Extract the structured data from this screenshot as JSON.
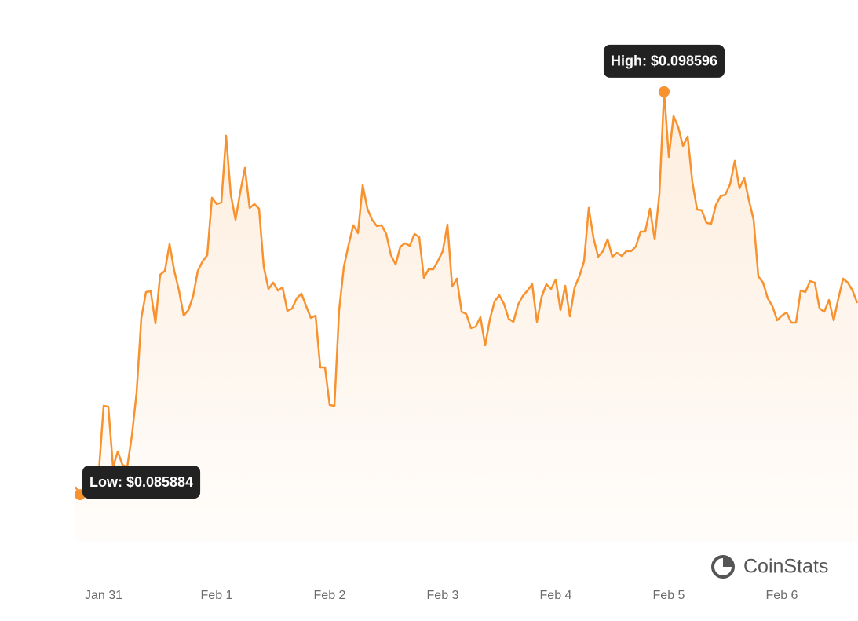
{
  "chart_data": {
    "type": "line",
    "color": "#f7922f",
    "ylim": [
      0.0844,
      0.1005
    ],
    "annotations": {
      "low": "Low: $0.085884",
      "high": "High: $0.098596"
    },
    "watermark": "CoinStats",
    "categories": [
      null,
      null,
      null,
      null,
      null,
      null,
      "Jan 31",
      null,
      null,
      null,
      null,
      null,
      null,
      null,
      null,
      null,
      null,
      null,
      null,
      null,
      null,
      null,
      null,
      null,
      null,
      null,
      null,
      null,
      null,
      null,
      "Feb 1",
      null,
      null,
      null,
      null,
      null,
      null,
      null,
      null,
      null,
      null,
      null,
      null,
      null,
      null,
      null,
      null,
      null,
      null,
      null,
      null,
      null,
      null,
      null,
      "Feb 2",
      null,
      null,
      null,
      null,
      null,
      null,
      null,
      null,
      null,
      null,
      null,
      null,
      null,
      null,
      null,
      null,
      null,
      null,
      null,
      null,
      null,
      null,
      null,
      "Feb 3",
      null,
      null,
      null,
      null,
      null,
      null,
      null,
      null,
      null,
      null,
      null,
      null,
      null,
      null,
      null,
      null,
      null,
      null,
      null,
      null,
      null,
      null,
      null,
      "Feb 4",
      null,
      null,
      null,
      null,
      null,
      null,
      null,
      null,
      null,
      null,
      null,
      null,
      null,
      null,
      null,
      null,
      null,
      null,
      null,
      null,
      null,
      null,
      null,
      "Feb 5",
      null,
      null,
      null,
      null,
      null,
      null,
      null,
      null,
      null,
      null,
      null,
      null,
      null,
      null,
      null,
      null,
      null,
      null,
      null,
      null,
      null,
      null,
      null,
      "Feb 6",
      null,
      null,
      null,
      null,
      null,
      null,
      null,
      null,
      null,
      null,
      null,
      null,
      null,
      null,
      null,
      null
    ],
    "values": [
      0.086132,
      0.085884,
      0.086008,
      0.086008,
      0.086082,
      0.086627,
      0.088684,
      0.088659,
      0.086751,
      0.087247,
      0.086826,
      0.086751,
      0.087743,
      0.089105,
      0.09146,
      0.092277,
      0.092302,
      0.091286,
      0.092822,
      0.092946,
      0.093789,
      0.092946,
      0.092327,
      0.091534,
      0.091707,
      0.092153,
      0.092946,
      0.093244,
      0.093442,
      0.095251,
      0.095053,
      0.095102,
      0.097208,
      0.09535,
      0.094557,
      0.095424,
      0.096192,
      0.094929,
      0.095053,
      0.094904,
      0.09307,
      0.092376,
      0.092575,
      0.092327,
      0.092426,
      0.091683,
      0.091757,
      0.092079,
      0.092228,
      0.091831,
      0.09146,
      0.091534,
      0.089898,
      0.089898,
      0.088709,
      0.088684,
      0.091707,
      0.09307,
      0.093764,
      0.094384,
      0.094136,
      0.095647,
      0.094904,
      0.094557,
      0.094359,
      0.094384,
      0.094111,
      0.093442,
      0.093145,
      0.093714,
      0.093814,
      0.093739,
      0.094111,
      0.094012,
      0.092723,
      0.092996,
      0.092996,
      0.093268,
      0.093566,
      0.094408,
      0.092451,
      0.092699,
      0.091658,
      0.091583,
      0.091137,
      0.091187,
      0.091484,
      0.090592,
      0.09141,
      0.09198,
      0.092178,
      0.091906,
      0.091435,
      0.091336,
      0.091881,
      0.092153,
      0.092327,
      0.092525,
      0.091336,
      0.092129,
      0.092525,
      0.092376,
      0.092674,
      0.091707,
      0.092475,
      0.091509,
      0.092426,
      0.092773,
      0.093244,
      0.094929,
      0.093987,
      0.093392,
      0.093566,
      0.093938,
      0.093392,
      0.093516,
      0.093417,
      0.093566,
      0.093566,
      0.093714,
      0.094185,
      0.094185,
      0.094904,
      0.093938,
      0.095375,
      0.098596,
      0.096539,
      0.097828,
      0.097481,
      0.096886,
      0.097184,
      0.095746,
      0.094879,
      0.094854,
      0.094458,
      0.094433,
      0.095028,
      0.0953,
      0.09535,
      0.095672,
      0.096416,
      0.095548,
      0.09587,
      0.095177,
      0.094557,
      0.092773,
      0.092575,
      0.092079,
      0.091831,
      0.091385,
      0.091534,
      0.091633,
      0.091311,
      0.091311,
      0.092327,
      0.092277,
      0.092624,
      0.092575,
      0.091757,
      0.091658,
      0.092029,
      0.091385,
      0.092079,
      0.092699,
      0.092575,
      0.092327,
      0.09193
    ]
  }
}
